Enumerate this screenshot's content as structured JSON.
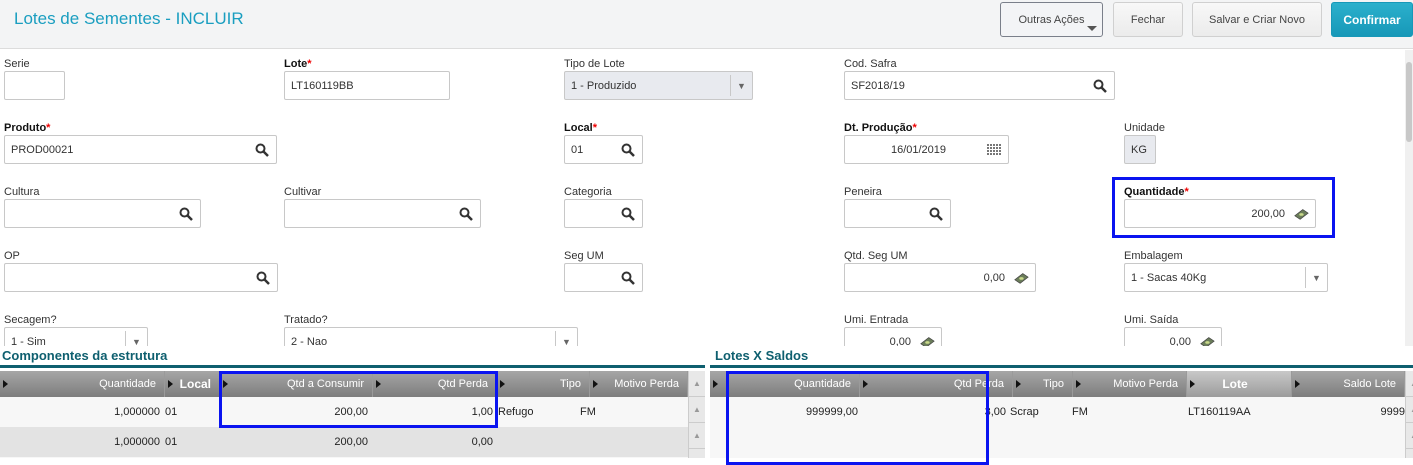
{
  "header": {
    "title": "Lotes  de Sementes - INCLUIR",
    "buttons": {
      "outras": "Outras Ações",
      "fechar": "Fechar",
      "salvar": "Salvar e Criar Novo",
      "confirmar": "Confirmar"
    }
  },
  "form": {
    "serie": {
      "label": "Serie",
      "value": ""
    },
    "lote": {
      "label": "Lote",
      "value": "LT160119BB"
    },
    "tipo_lote": {
      "label": "Tipo de Lote",
      "value": "1 - Produzido"
    },
    "cod_safra": {
      "label": "Cod. Safra",
      "value": "SF2018/19"
    },
    "produto": {
      "label": "Produto",
      "value": "PROD00021"
    },
    "local": {
      "label": "Local",
      "value": "01"
    },
    "dt_producao": {
      "label": "Dt. Produção",
      "value": "16/01/2019"
    },
    "unidade": {
      "label": "Unidade",
      "value": "KG"
    },
    "cultura": {
      "label": "Cultura",
      "value": ""
    },
    "cultivar": {
      "label": "Cultivar",
      "value": ""
    },
    "categoria": {
      "label": "Categoria",
      "value": ""
    },
    "peneira": {
      "label": "Peneira",
      "value": ""
    },
    "quantidade": {
      "label": "Quantidade",
      "value": "200,00"
    },
    "op": {
      "label": "OP",
      "value": ""
    },
    "seg_um": {
      "label": "Seg UM",
      "value": ""
    },
    "qtd_seg_um": {
      "label": "Qtd. Seg UM",
      "value": "0,00"
    },
    "embalagem": {
      "label": "Embalagem",
      "value": "1 - Sacas 40Kg"
    },
    "secagem": {
      "label": "Secagem?",
      "value": "1 - Sim"
    },
    "tratado": {
      "label": "Tratado?",
      "value": "2 - Nao"
    },
    "umi_entrada": {
      "label": "Umi. Entrada",
      "value": "0,00"
    },
    "umi_saida": {
      "label": "Umi. Saída",
      "value": "0,00"
    },
    "required_mark": "*"
  },
  "componentes": {
    "title": "Componentes da estrutura",
    "columns": [
      "Quantidade",
      "Local",
      "Qtd a Consumir",
      "Qtd Perda",
      "Tipo",
      "Motivo Perda"
    ],
    "rows": [
      [
        "1,000000",
        "01",
        "200,00",
        "1,00",
        "Refugo",
        "FM"
      ],
      [
        "1,000000",
        "01",
        "200,00",
        "0,00",
        "",
        ""
      ]
    ]
  },
  "saldos": {
    "title": "Lotes X Saldos",
    "columns": [
      "Quantidade",
      "Qtd Perda",
      "Tipo",
      "Motivo Perda",
      "Lote",
      "Saldo Lote"
    ],
    "rows": [
      [
        "999999,00",
        "3,00",
        "Scrap",
        "FM",
        "LT160119AA",
        "9999"
      ]
    ]
  },
  "colors": {
    "accent": "#1a9ec0",
    "section": "#0e5f6f",
    "highlight": "#0a14f0"
  }
}
